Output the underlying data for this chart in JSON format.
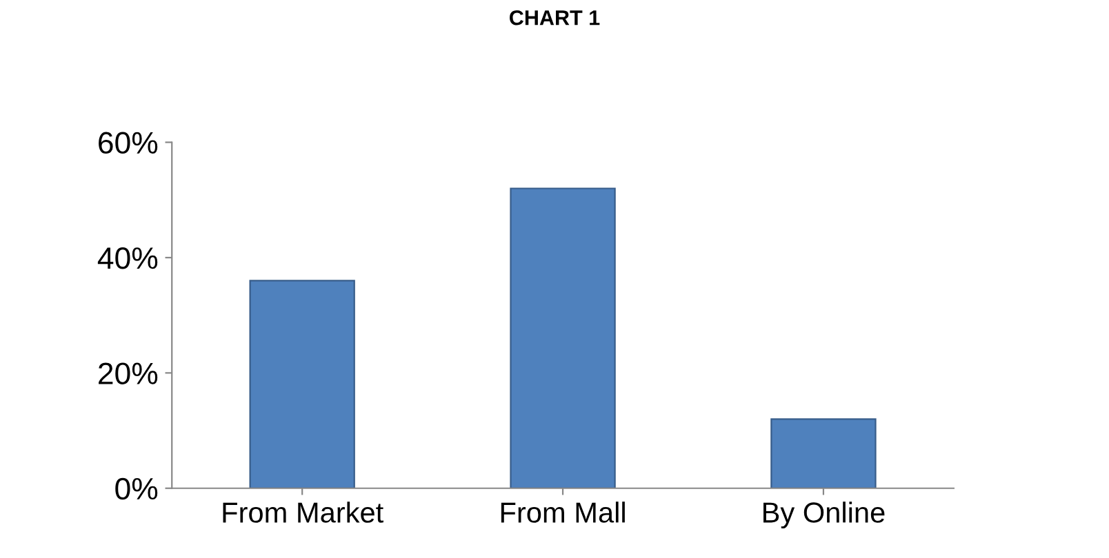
{
  "chart_data": {
    "type": "bar",
    "title": "CHART 1",
    "categories": [
      "From Market",
      "From Mall",
      "By Online"
    ],
    "values": [
      36,
      52,
      12
    ],
    "color": "#4f81bd",
    "ylim": [
      0,
      60
    ],
    "yticks": [
      {
        "value": 0,
        "label": "0%"
      },
      {
        "value": 20,
        "label": "20%"
      },
      {
        "value": 40,
        "label": "40%"
      },
      {
        "value": 60,
        "label": "60%"
      }
    ],
    "grid": false
  }
}
